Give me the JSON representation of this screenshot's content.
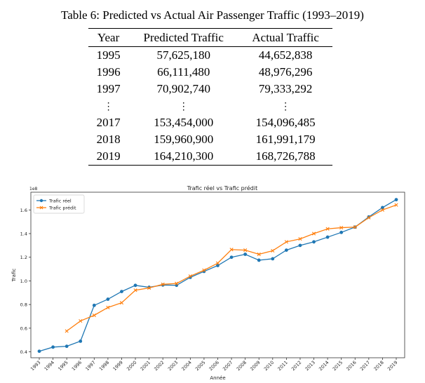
{
  "table": {
    "caption": "Table 6: Predicted vs Actual Air Passenger Traffic (1993–2019)",
    "headers": [
      "Year",
      "Predicted Traffic",
      "Actual Traffic"
    ],
    "rows": [
      [
        "1995",
        "57,625,180",
        "44,652,838"
      ],
      [
        "1996",
        "66,111,480",
        "48,976,296"
      ],
      [
        "1997",
        "70,902,740",
        "79,333,292"
      ],
      [
        "⋮",
        "⋮",
        "⋮"
      ],
      [
        "2017",
        "153,454,000",
        "154,096,485"
      ],
      [
        "2018",
        "159,960,900",
        "161,991,179"
      ],
      [
        "2019",
        "164,210,300",
        "168,726,788"
      ]
    ]
  },
  "chart_data": {
    "type": "line",
    "title": "Trafic réel vs Trafic prédit",
    "xlabel": "Année",
    "ylabel": "Trafic",
    "y_scale_note": "1e8",
    "ylim": [
      0.35,
      1.75
    ],
    "yticks": [
      0.4,
      0.6,
      0.8,
      1.0,
      1.2,
      1.4,
      1.6
    ],
    "grid": false,
    "legend_position": "top-left",
    "x": [
      1993,
      1994,
      1995,
      1996,
      1997,
      1998,
      1999,
      2000,
      2001,
      2002,
      2003,
      2004,
      2005,
      2006,
      2007,
      2008,
      2009,
      2010,
      2011,
      2012,
      2013,
      2014,
      2015,
      2016,
      2017,
      2018,
      2019
    ],
    "series": [
      {
        "name": "Trafic réel",
        "color": "#1f77b4",
        "marker": "circle",
        "values": [
          0.405,
          0.44,
          0.447,
          0.49,
          0.793,
          0.845,
          0.91,
          0.962,
          0.946,
          0.965,
          0.963,
          1.03,
          1.08,
          1.13,
          1.2,
          1.225,
          1.175,
          1.187,
          1.26,
          1.3,
          1.33,
          1.37,
          1.41,
          1.455,
          1.541,
          1.62,
          1.687
        ]
      },
      {
        "name": "Trafic prédit",
        "color": "#ff7f0e",
        "marker": "x",
        "values": [
          null,
          null,
          0.576,
          0.661,
          0.709,
          0.775,
          0.815,
          0.921,
          0.94,
          0.971,
          0.978,
          1.04,
          1.09,
          1.15,
          1.265,
          1.26,
          1.225,
          1.255,
          1.33,
          1.355,
          1.4,
          1.44,
          1.45,
          1.455,
          1.535,
          1.6,
          1.642
        ]
      }
    ]
  }
}
